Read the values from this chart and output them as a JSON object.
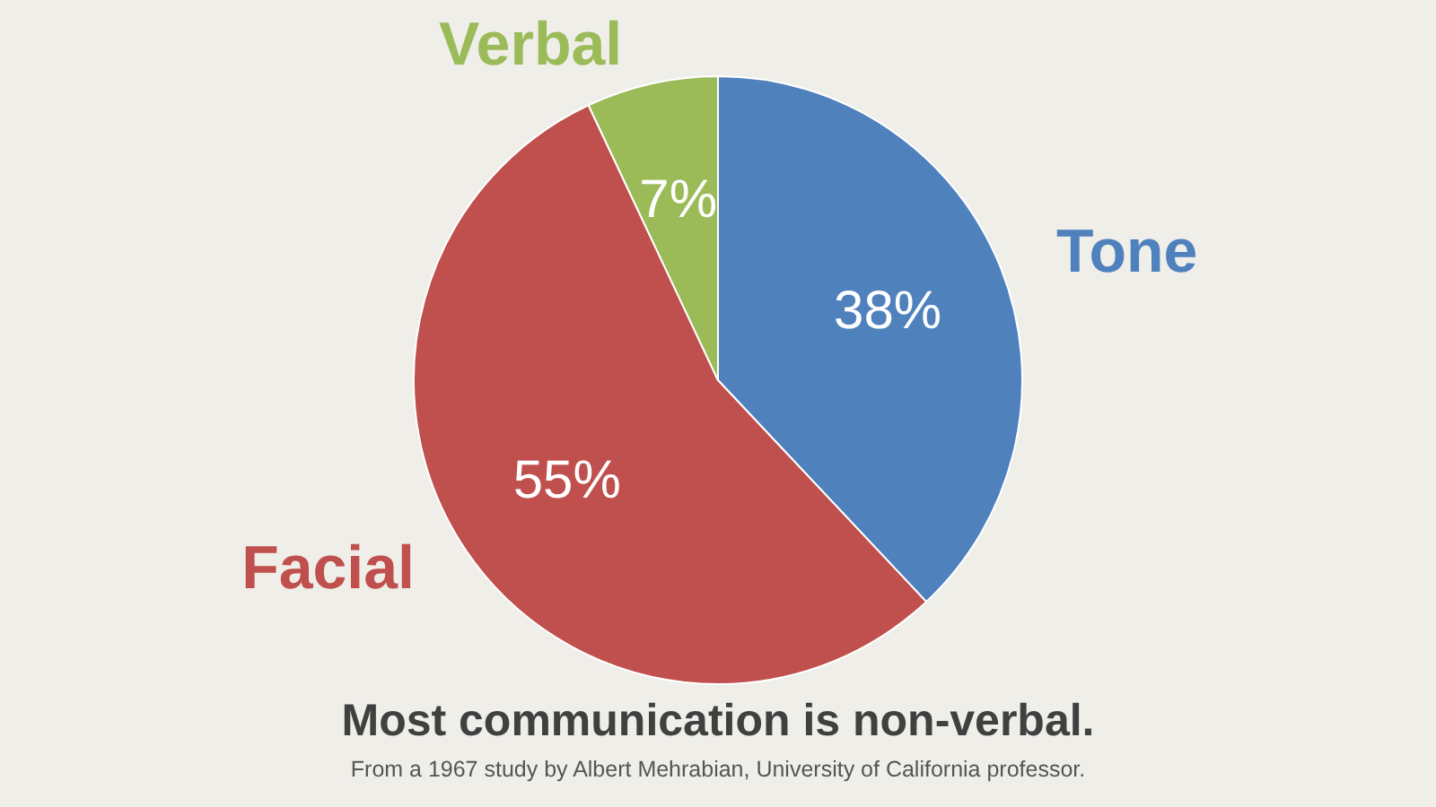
{
  "chart_data": {
    "type": "pie",
    "title": "Most communication is non-verbal.",
    "annotations": [
      "From a 1967 study by Albert Mehrabian, University of California professor."
    ],
    "categories": [
      "Tone",
      "Facial",
      "Verbal"
    ],
    "values": [
      38,
      55,
      7
    ],
    "colors": [
      "#4f81bd",
      "#c0504d",
      "#9bbb59"
    ],
    "value_labels": [
      "38%",
      "55%",
      "7%"
    ],
    "legend": false
  }
}
